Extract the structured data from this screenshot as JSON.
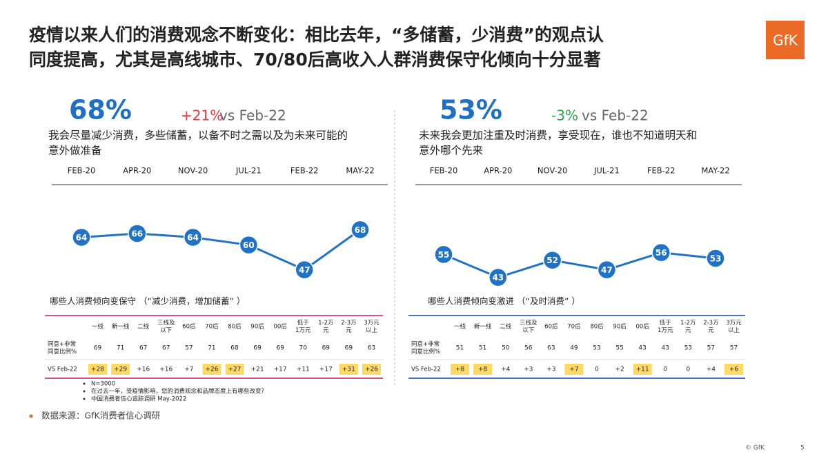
{
  "title": [
    "疫情以来人们的消费观念不断变化：相比去年，“多储蓄，少消费”的观点认",
    "同度提高，尤其是高线城市、70/80后高收入人群消费保守化倾向十分显著"
  ],
  "logo": "GfK",
  "chart_data": [
    {
      "type": "line",
      "headline": "68%",
      "change": "+21%",
      "change_color": "#e8383d",
      "compare": "vs Feb-22",
      "statement": [
        "我会尽量减少消费，多些储蓄，以备不时之需以及为未来可能的",
        "意外做准备"
      ],
      "categories": [
        "FEB-20",
        "APR-20",
        "NOV-20",
        "JUL-21",
        "FEB-22",
        "MAY-22"
      ],
      "values": [
        64,
        66,
        64,
        60,
        47,
        68
      ],
      "color": "#1f72c6",
      "ylim": [
        40,
        75
      ]
    },
    {
      "type": "line",
      "headline": "53%",
      "change": "-3%",
      "change_color": "#2aa84a",
      "compare": "vs Feb-22",
      "statement": [
        "未来我会更加注重及时消费，享受现在，谁也不知道明天和",
        "意外哪个先来"
      ],
      "categories": [
        "FEB-20",
        "APR-20",
        "NOV-20",
        "JUL-21",
        "FEB-22",
        "MAY-22"
      ],
      "values": [
        55,
        43,
        52,
        47,
        56,
        53
      ],
      "color": "#1f72c6",
      "ylim": [
        40,
        75
      ]
    }
  ],
  "tables": [
    {
      "heading": "哪些人消费倾向变保守 （“减少消费，增加储蓄” ）",
      "rule_color": "#d9537f",
      "columns": [
        [
          "一线"
        ],
        [
          "新一线"
        ],
        [
          "二线"
        ],
        [
          "三线及",
          "以下"
        ],
        [
          "60后"
        ],
        [
          "70后"
        ],
        [
          "80后"
        ],
        [
          "90后"
        ],
        [
          "00后"
        ],
        [
          "低于",
          "1万元"
        ],
        [
          "1-2万",
          "元"
        ],
        [
          "2-3万",
          "元"
        ],
        [
          "3万元",
          "以上"
        ]
      ],
      "rows": [
        {
          "label": [
            "同意+非常",
            "同意比例%"
          ],
          "cells": [
            69,
            71,
            67,
            67,
            57,
            71,
            68,
            69,
            69,
            70,
            69,
            69,
            63
          ]
        },
        {
          "label": [
            "VS Feb-22"
          ],
          "cells": [
            "+28",
            "+29",
            "+16",
            "+16",
            "+7",
            "+26",
            "+27",
            "+21",
            "+17",
            "+11",
            "+17",
            "+31",
            "+26"
          ]
        }
      ],
      "highlight": [
        0,
        1,
        5,
        6,
        11,
        12
      ]
    },
    {
      "heading": "哪些人消费倾向变激进 （“及时消费” ）",
      "rule_color": "#4a72c4",
      "columns": [
        [
          "一线"
        ],
        [
          "新一线"
        ],
        [
          "二线"
        ],
        [
          "三线及",
          "以下"
        ],
        [
          "60后"
        ],
        [
          "70后"
        ],
        [
          "80后"
        ],
        [
          "90后"
        ],
        [
          "00后"
        ],
        [
          "低于",
          "1万元"
        ],
        [
          "1-2万",
          "元"
        ],
        [
          "2-3万",
          "元"
        ],
        [
          "3万元",
          "以上"
        ]
      ],
      "rows": [
        {
          "label": [
            "同意+非常",
            "同意比例%"
          ],
          "cells": [
            51,
            51,
            50,
            56,
            63,
            49,
            53,
            55,
            43,
            43,
            53,
            57,
            57
          ]
        },
        {
          "label": [
            "VS Feb-22"
          ],
          "cells": [
            "+8",
            "+8",
            "+4",
            "+3",
            "+3",
            "+7",
            "0",
            "+2",
            "+11",
            "0",
            "0",
            "+4",
            "+6"
          ]
        }
      ],
      "highlight": [
        0,
        1,
        5,
        8,
        12
      ]
    }
  ],
  "notes": [
    "N=3000",
    "在过去一年，受疫情影响，您的消费观念和品牌态度上有哪些改变?",
    "中国消费者信心追踪调研 May-2022"
  ],
  "source": "数据来源：GfK消费者信心调研",
  "footer": {
    "copyright": "© GfK",
    "page": "5"
  }
}
